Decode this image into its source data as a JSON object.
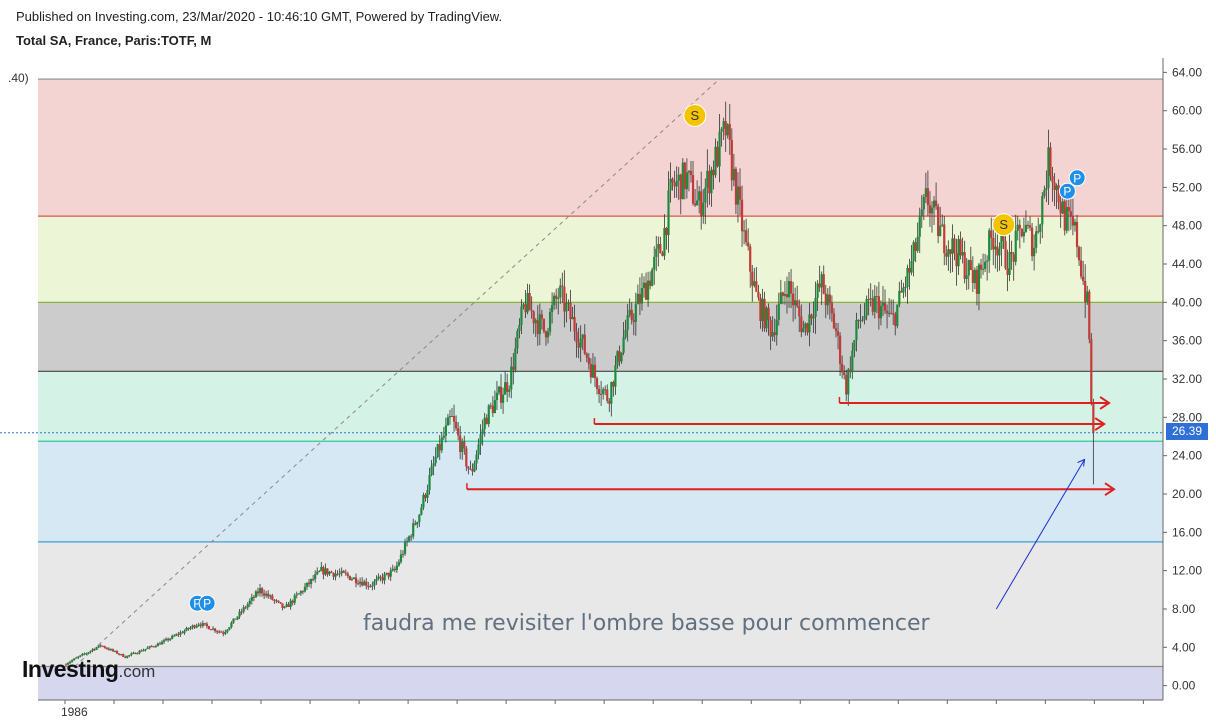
{
  "header": {
    "published": "Published on Investing.com, 23/Mar/2020 - 10:46:10 GMT, Powered by TradingView.",
    "symbol": "Total SA, France, Paris:TOTF, M"
  },
  "logo": {
    "brand": "Investing",
    "suffix": ".com"
  },
  "chart_data": {
    "type": "candlestick",
    "title": "Total SA, France, Paris:TOTF, M",
    "ylim": [
      -1.5,
      65.5
    ],
    "y_ticks": [
      "64.00",
      "60.00",
      "56.00",
      "52.00",
      "48.00",
      "44.00",
      "40.00",
      "36.00",
      "32.00",
      "28.00",
      "24.00",
      "20.00",
      "16.00",
      "12.00",
      "8.00",
      "4.00",
      "0.00"
    ],
    "x_ticks": [
      "1986"
    ],
    "last_price": "26.39",
    "left_cut_label": ".40)",
    "fib_levels": [
      {
        "price": 2.0,
        "color": "#8a8a8a"
      },
      {
        "price": 15.0,
        "color": "#3fa0d0"
      },
      {
        "price": 25.5,
        "color": "#32c8a0"
      },
      {
        "price": 32.8,
        "color": "#444444"
      },
      {
        "price": 40.0,
        "color": "#8cb43c"
      },
      {
        "price": 49.0,
        "color": "#d4584f"
      },
      {
        "price": 63.3,
        "color": "#8a8a8a"
      }
    ],
    "zones": [
      {
        "from": -1.5,
        "to": 2.0,
        "color": "#d6d6ef"
      },
      {
        "from": 2.0,
        "to": 15.0,
        "color": "#e8e8e8"
      },
      {
        "from": 15.0,
        "to": 25.5,
        "color": "#d6e8f4"
      },
      {
        "from": 25.5,
        "to": 32.8,
        "color": "#d5f2e7"
      },
      {
        "from": 32.8,
        "to": 40.0,
        "color": "#cccccc"
      },
      {
        "from": 40.0,
        "to": 49.0,
        "color": "#ecf5d6"
      },
      {
        "from": 49.0,
        "to": 63.3,
        "color": "#f4d4d3"
      }
    ],
    "price_path": [
      [
        1986.0,
        2.2
      ],
      [
        1987.5,
        4.2
      ],
      [
        1988.5,
        3.0
      ],
      [
        1990.0,
        4.5
      ],
      [
        1991.5,
        6.5
      ],
      [
        1992.5,
        5.5
      ],
      [
        1994.0,
        10.0
      ],
      [
        1995.0,
        8.0
      ],
      [
        1996.5,
        12.0
      ],
      [
        1997.5,
        11.5
      ],
      [
        1998.5,
        10.5
      ],
      [
        1999.5,
        12.0
      ],
      [
        2000.5,
        18.0
      ],
      [
        2001.2,
        24.0
      ],
      [
        2001.8,
        28.0
      ],
      [
        2002.6,
        22.0
      ],
      [
        2003.2,
        28.0
      ],
      [
        2004.2,
        32.0
      ],
      [
        2004.8,
        40.0
      ],
      [
        2005.6,
        37.0
      ],
      [
        2006.2,
        41.0
      ],
      [
        2007.1,
        36.0
      ],
      [
        2007.7,
        32.0
      ],
      [
        2008.2,
        30.0
      ],
      [
        2008.9,
        37.0
      ],
      [
        2009.8,
        42.0
      ],
      [
        2010.4,
        46.0
      ],
      [
        2010.8,
        52.0
      ],
      [
        2011.4,
        53.0
      ],
      [
        2011.9,
        50.0
      ],
      [
        2012.6,
        55.0
      ],
      [
        2013.0,
        58.0
      ],
      [
        2013.4,
        52.0
      ],
      [
        2013.8,
        46.0
      ],
      [
        2014.3,
        40.0
      ],
      [
        2014.9,
        37.0
      ],
      [
        2015.5,
        42.0
      ],
      [
        2016.2,
        37.0
      ],
      [
        2016.9,
        42.0
      ],
      [
        2017.5,
        37.0
      ],
      [
        2017.9,
        31.0
      ],
      [
        2018.4,
        38.0
      ],
      [
        2019.1,
        40.0
      ],
      [
        2019.8,
        38.0
      ],
      [
        2020.6,
        44.0
      ],
      [
        2021.2,
        51.0
      ],
      [
        2021.8,
        47.0
      ],
      [
        2022.5,
        45.0
      ],
      [
        2023.2,
        42.0
      ],
      [
        2023.9,
        47.0
      ],
      [
        2024.6,
        44.0
      ],
      [
        2025.1,
        48.0
      ],
      [
        2025.6,
        46.0
      ],
      [
        2026.2,
        55.0
      ],
      [
        2026.8,
        49.0
      ],
      [
        2027.3,
        47.0
      ],
      [
        2027.6,
        42.0
      ],
      [
        2027.8,
        39.0
      ],
      [
        2027.95,
        26.39
      ]
    ],
    "fib_trendline": [
      [
        1986.4,
        2.0
      ],
      [
        2012.7,
        63.3
      ]
    ],
    "marker_labels": [
      {
        "label": "S",
        "x": 2011.7,
        "y": 59.5,
        "kind": "dividend"
      },
      {
        "label": "S",
        "x": 2024.3,
        "y": 48.1,
        "kind": "dividend"
      },
      {
        "label": "P",
        "x": 1991.4,
        "y": 8.6,
        "kind": "split"
      },
      {
        "label": "P",
        "x": 1991.8,
        "y": 8.6,
        "kind": "split"
      },
      {
        "label": "P",
        "x": 2026.9,
        "y": 51.6,
        "kind": "split"
      },
      {
        "label": "P",
        "x": 2027.3,
        "y": 53.0,
        "kind": "split"
      }
    ],
    "support_arrows": [
      {
        "from_x": 2017.6,
        "to_x": 2028.6,
        "y": 29.5
      },
      {
        "from_x": 2007.6,
        "to_x": 2028.4,
        "y": 27.3
      },
      {
        "from_x": 2002.4,
        "to_x": 2028.8,
        "y": 20.5
      }
    ],
    "annotation": "faudra me revisiter l'ombre basse pour commencer",
    "annotation_arrow": {
      "from": [
        2024.0,
        8.0
      ],
      "to": [
        2027.6,
        23.6
      ]
    }
  }
}
